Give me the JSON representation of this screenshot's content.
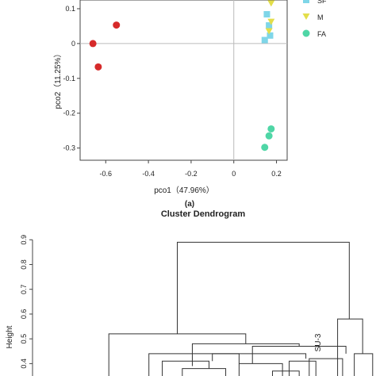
{
  "chart_data": [
    {
      "type": "scatter",
      "panel_label": "(a)",
      "xlabel": "pco1（47.96%）",
      "ylabel": "pco2（11.25%）",
      "xlim": [
        -0.72,
        0.25
      ],
      "ylim": [
        -0.335,
        0.125
      ],
      "xticks": [
        -0.6,
        -0.4,
        -0.2,
        0,
        0.2
      ],
      "xtick_labels": [
        "-0.6",
        "-0.4",
        "-0.2",
        "0",
        "0.2"
      ],
      "yticks": [
        -0.3,
        -0.2,
        -0.1,
        0,
        0.1
      ],
      "ytick_labels": [
        "-0.3",
        "-0.2",
        "-0.1",
        "0",
        "0.1"
      ],
      "zero_lines": true,
      "legend_position": "top-right",
      "series": [
        {
          "name": "",
          "color": "#d62a2a",
          "marker": "circle",
          "points": [
            [
              -0.55,
              0.053
            ],
            [
              -0.66,
              0.0
            ],
            [
              -0.635,
              -0.067
            ]
          ]
        },
        {
          "name": "SF",
          "color": "#7fd6e8",
          "marker": "square",
          "points": [
            [
              0.155,
              0.084
            ],
            [
              0.165,
              0.052
            ],
            [
              0.17,
              0.023
            ],
            [
              0.145,
              0.01
            ]
          ]
        },
        {
          "name": "M",
          "color": "#e3de4a",
          "marker": "triangle-down",
          "points": [
            [
              0.175,
              0.115
            ],
            [
              0.175,
              0.062
            ],
            [
              0.165,
              0.035
            ]
          ]
        },
        {
          "name": "FA",
          "color": "#4fd6a6",
          "marker": "circle",
          "points": [
            [
              0.175,
              -0.245
            ],
            [
              0.165,
              -0.265
            ],
            [
              0.145,
              -0.298
            ]
          ]
        }
      ],
      "legend": [
        {
          "label": "SF",
          "color": "#7fd6e8",
          "marker": "square"
        },
        {
          "label": "M",
          "color": "#e3de4a",
          "marker": "triangle-down"
        },
        {
          "label": "FA",
          "color": "#4fd6a6",
          "marker": "circle"
        }
      ]
    },
    {
      "type": "dendrogram",
      "title": "Cluster Dendrogram",
      "ylabel": "Height",
      "ylim": [
        0.35,
        0.92
      ],
      "yticks": [
        0.4,
        0.5,
        0.6,
        0.7,
        0.8,
        0.9
      ],
      "ytick_labels": [
        "0.4",
        "0.5",
        "0.6",
        "0.7",
        "0.8",
        "0.9"
      ],
      "leaf_label": "SU-3",
      "merges": [
        {
          "name": "root",
          "x1": 0.405,
          "x2": 0.92,
          "height": 0.89,
          "bottom1": 0.52,
          "bottom2": 0.58
        },
        {
          "name": "a",
          "x1": 0.2,
          "x2": 0.61,
          "height": 0.52,
          "bottom1": 0.35,
          "bottom2": 0.48
        },
        {
          "name": "b",
          "x1": 0.45,
          "x2": 0.77,
          "height": 0.48,
          "bottom1": 0.39,
          "bottom2": 0.47
        },
        {
          "name": "c",
          "x1": 0.63,
          "x2": 0.91,
          "height": 0.47,
          "bottom1": 0.4,
          "bottom2": 0.44
        },
        {
          "name": "d",
          "x1": 0.32,
          "x2": 0.59,
          "height": 0.44,
          "bottom1": 0.35,
          "bottom2": 0.4
        },
        {
          "name": "e",
          "x1": 0.51,
          "x2": 0.79,
          "height": 0.44,
          "bottom1": 0.41,
          "bottom2": 0.42
        },
        {
          "name": "f",
          "x1": 0.36,
          "x2": 0.5,
          "height": 0.41,
          "bottom1": 0.35,
          "bottom2": 0.38
        },
        {
          "name": "g",
          "x1": 0.42,
          "x2": 0.55,
          "height": 0.38,
          "bottom1": 0.35,
          "bottom2": 0.35
        },
        {
          "name": "h",
          "x1": 0.59,
          "x2": 0.72,
          "height": 0.4,
          "bottom1": 0.35,
          "bottom2": 0.35
        },
        {
          "name": "i",
          "x1": 0.69,
          "x2": 0.77,
          "height": 0.37,
          "bottom1": 0.35,
          "bottom2": 0.35
        },
        {
          "name": "j",
          "x1": 0.74,
          "x2": 0.82,
          "height": 0.41,
          "bottom1": 0.35,
          "bottom2": 0.35
        },
        {
          "name": "k",
          "x1": 0.8,
          "x2": 0.9,
          "height": 0.42,
          "bottom1": 0.35,
          "bottom2": 0.35
        },
        {
          "name": "l",
          "x1": 0.885,
          "x2": 0.96,
          "height": 0.58,
          "bottom1": 0.35,
          "bottom2": 0.44
        },
        {
          "name": "m",
          "x1": 0.935,
          "x2": 0.99,
          "height": 0.44,
          "bottom1": 0.35,
          "bottom2": 0.35
        }
      ]
    }
  ]
}
